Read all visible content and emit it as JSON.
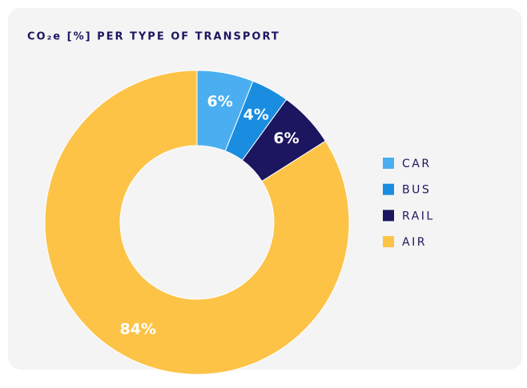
{
  "chart_data": {
    "type": "donut",
    "title": "CO₂e [%] PER TYPE OF TRANSPORT",
    "categories": [
      "CAR",
      "BUS",
      "RAIL",
      "AIR"
    ],
    "values": [
      6,
      4,
      6,
      84
    ],
    "value_labels": [
      "6%",
      "4%",
      "6%",
      "84%"
    ],
    "colors": [
      "#4aaef0",
      "#1a8de0",
      "#1c1660",
      "#fcc347"
    ],
    "legend": "right"
  }
}
